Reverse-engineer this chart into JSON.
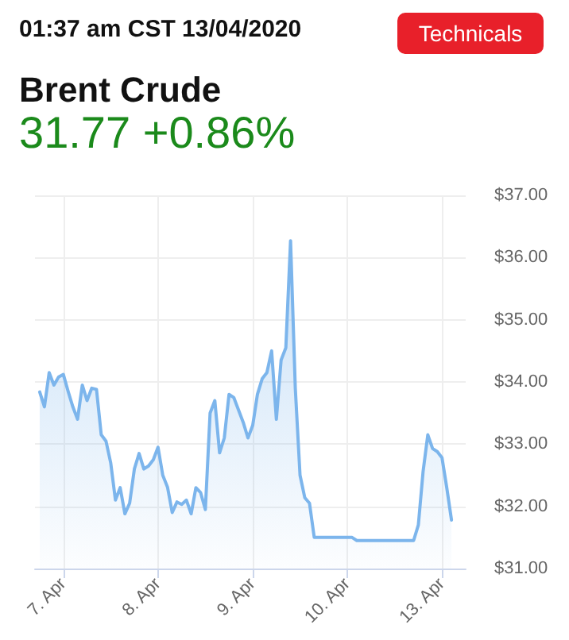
{
  "chart_data": {
    "type": "area",
    "title": "Brent Crude",
    "subtitle": "31.77 +0.86%",
    "annotations": [
      "01:37 am CST 13/04/2020",
      "Technicals"
    ],
    "categories": [
      null,
      null,
      null,
      null,
      null,
      null,
      "7. Apr",
      null,
      null,
      null,
      null,
      null,
      null,
      null,
      null,
      null,
      null,
      null,
      null,
      null,
      null,
      null,
      null,
      null,
      null,
      null,
      "8. Apr",
      null,
      null,
      null,
      null,
      null,
      null,
      null,
      null,
      null,
      null,
      null,
      null,
      null,
      null,
      null,
      null,
      null,
      null,
      null,
      "9. Apr",
      null,
      null,
      null,
      null,
      null,
      null,
      null,
      null,
      null,
      null,
      null,
      null,
      null,
      null,
      null,
      null,
      null,
      null,
      null,
      "10. Apr",
      null,
      null,
      null,
      null,
      null,
      null,
      null,
      null,
      null,
      null,
      null,
      null,
      null,
      null,
      null,
      null,
      null,
      null,
      null,
      "13. Apr",
      null,
      null,
      null,
      null,
      null
    ],
    "series": [
      {
        "color": "#7cb5ec",
        "values": [
          null,
          33.84,
          33.6,
          34.15,
          33.95,
          34.08,
          34.12,
          33.85,
          33.6,
          33.4,
          33.95,
          33.7,
          33.9,
          33.88,
          33.15,
          33.05,
          32.7,
          32.1,
          32.3,
          31.88,
          32.05,
          32.6,
          32.85,
          32.6,
          32.65,
          32.75,
          32.95,
          32.5,
          32.31,
          31.9,
          32.07,
          32.03,
          32.1,
          31.88,
          32.3,
          32.22,
          31.95,
          33.5,
          33.7,
          32.86,
          33.1,
          33.8,
          33.75,
          33.55,
          33.35,
          33.1,
          33.3,
          33.8,
          34.05,
          34.15,
          34.5,
          33.4,
          34.35,
          34.55,
          36.27,
          33.9,
          32.5,
          32.14,
          32.05,
          31.5,
          31.5,
          31.5,
          31.5,
          31.5,
          31.5,
          31.5,
          31.5,
          31.5,
          31.45,
          31.45,
          31.45,
          31.45,
          31.45,
          31.45,
          31.45,
          31.45,
          31.45,
          31.45,
          31.45,
          31.45,
          31.45,
          31.7,
          32.56,
          33.15,
          32.93,
          32.88,
          32.78,
          32.3,
          31.78,
          null,
          null,
          null
        ]
      }
    ],
    "ylim": [
      31,
      37
    ],
    "yticks": [
      {
        "value": 31,
        "label": "$31.00"
      },
      {
        "value": 32,
        "label": "$32.00"
      },
      {
        "value": 33,
        "label": "$33.00"
      },
      {
        "value": 34,
        "label": "$34.00"
      },
      {
        "value": 35,
        "label": "$35.00"
      },
      {
        "value": 36,
        "label": "$36.00"
      },
      {
        "value": 37,
        "label": "$37.00"
      }
    ],
    "grid": true,
    "marker": "none",
    "line_style": "solid"
  }
}
